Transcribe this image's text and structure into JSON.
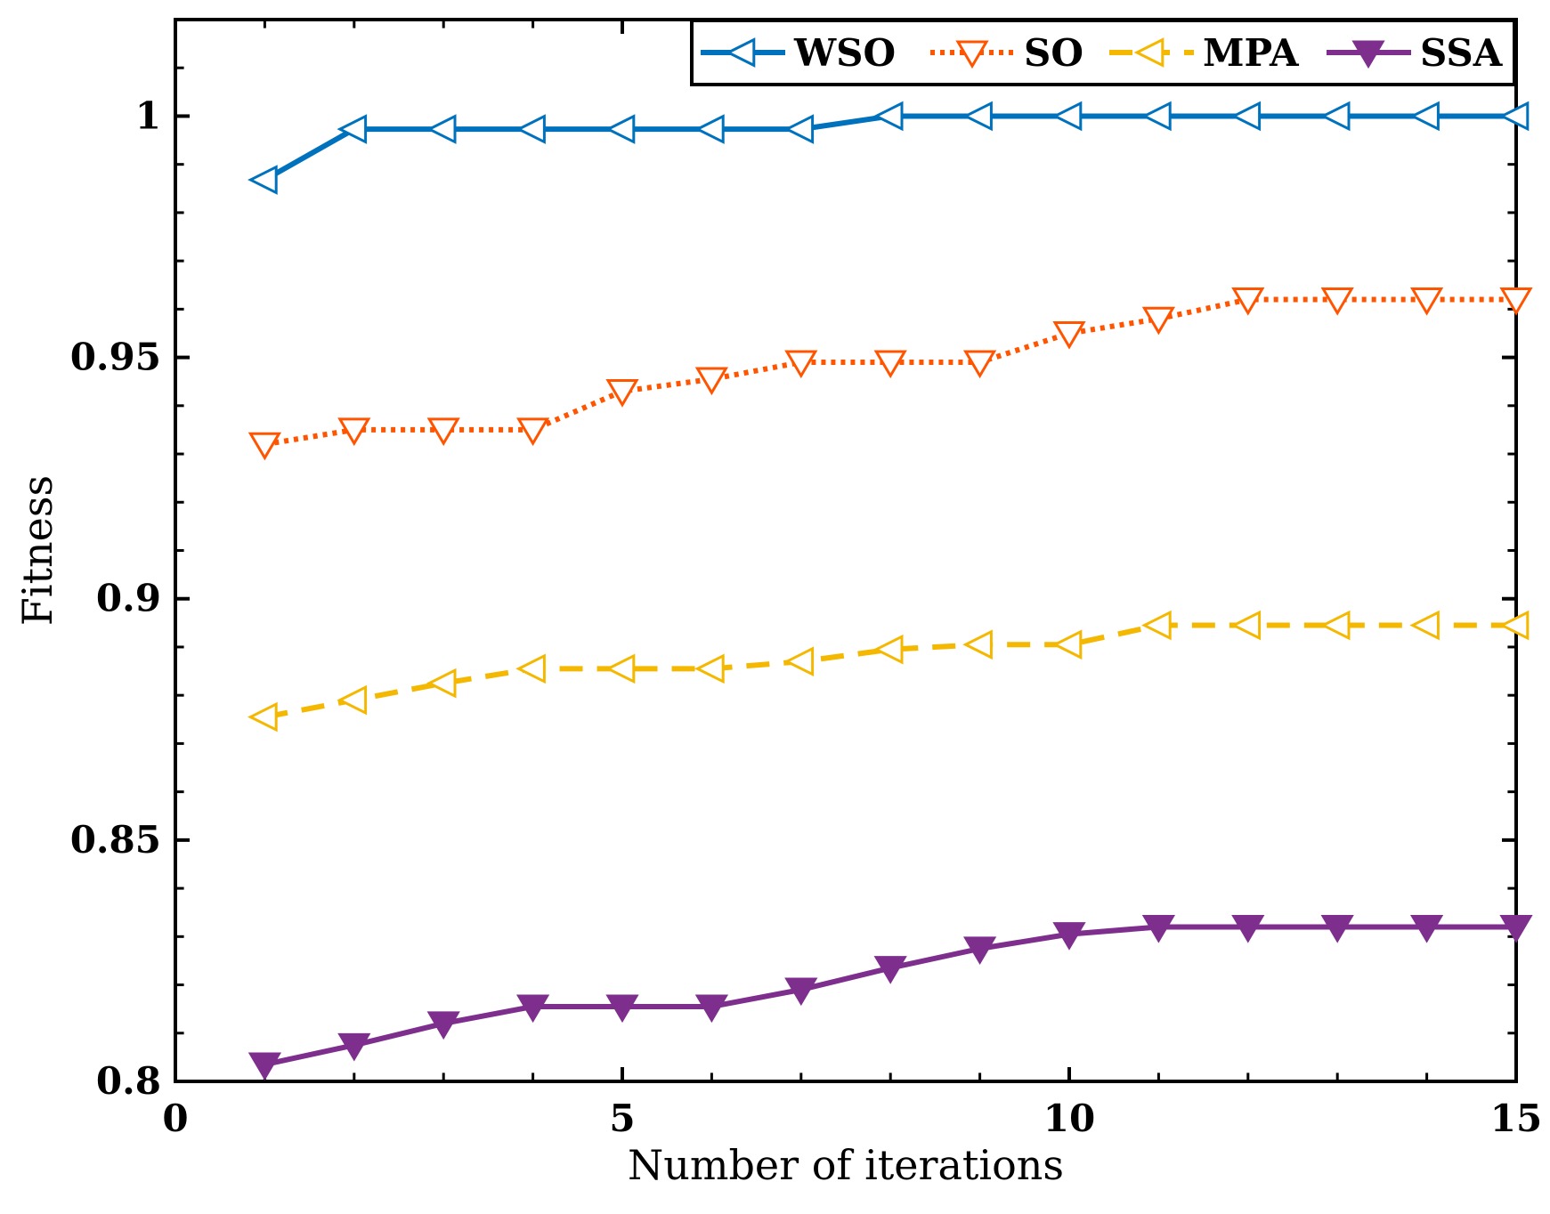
{
  "chart_data": {
    "type": "line",
    "title": "",
    "xlabel": "Number of iterations",
    "ylabel": "Fitness",
    "xlim": [
      0,
      15
    ],
    "ylim": [
      0.8,
      1.02
    ],
    "xticks": [
      0,
      5,
      10,
      15
    ],
    "xtick_labels": [
      "0",
      "5",
      "10",
      "15"
    ],
    "yticks": [
      0.8,
      0.85,
      0.9,
      0.95,
      1.0
    ],
    "ytick_labels": [
      "0.8",
      "0.85",
      "0.9",
      "0.95",
      "1"
    ],
    "grid": false,
    "legend_position": "top-right",
    "x": [
      1,
      2,
      3,
      4,
      5,
      6,
      7,
      8,
      9,
      10,
      11,
      12,
      13,
      14,
      15
    ],
    "series": [
      {
        "name": "WSO",
        "color": "#0072BD",
        "line_style": "solid",
        "marker": "triangle-left",
        "values": [
          0.9868,
          0.9973,
          0.9973,
          0.9973,
          0.9973,
          0.9973,
          0.9973,
          1.0,
          1.0,
          1.0,
          1.0,
          1.0,
          1.0,
          1.0,
          1.0
        ]
      },
      {
        "name": "SO",
        "color": "#FF5500",
        "line_style": "dotted",
        "marker": "triangle-down",
        "values": [
          0.932,
          0.935,
          0.935,
          0.935,
          0.943,
          0.9455,
          0.949,
          0.949,
          0.949,
          0.955,
          0.958,
          0.962,
          0.962,
          0.962,
          0.962
        ]
      },
      {
        "name": "MPA",
        "color": "#F5B800",
        "line_style": "dashed",
        "marker": "triangle-left",
        "values": [
          0.8755,
          0.879,
          0.8825,
          0.8855,
          0.8855,
          0.8855,
          0.887,
          0.8895,
          0.8905,
          0.8905,
          0.8945,
          0.8945,
          0.8945,
          0.8945,
          0.8945
        ]
      },
      {
        "name": "SSA",
        "color": "#7E2F8E",
        "line_style": "solid",
        "marker": "triangle-down",
        "values": [
          0.8035,
          0.8075,
          0.812,
          0.8155,
          0.8155,
          0.8155,
          0.819,
          0.8235,
          0.8275,
          0.8305,
          0.832,
          0.832,
          0.832,
          0.832,
          0.832
        ]
      }
    ]
  }
}
